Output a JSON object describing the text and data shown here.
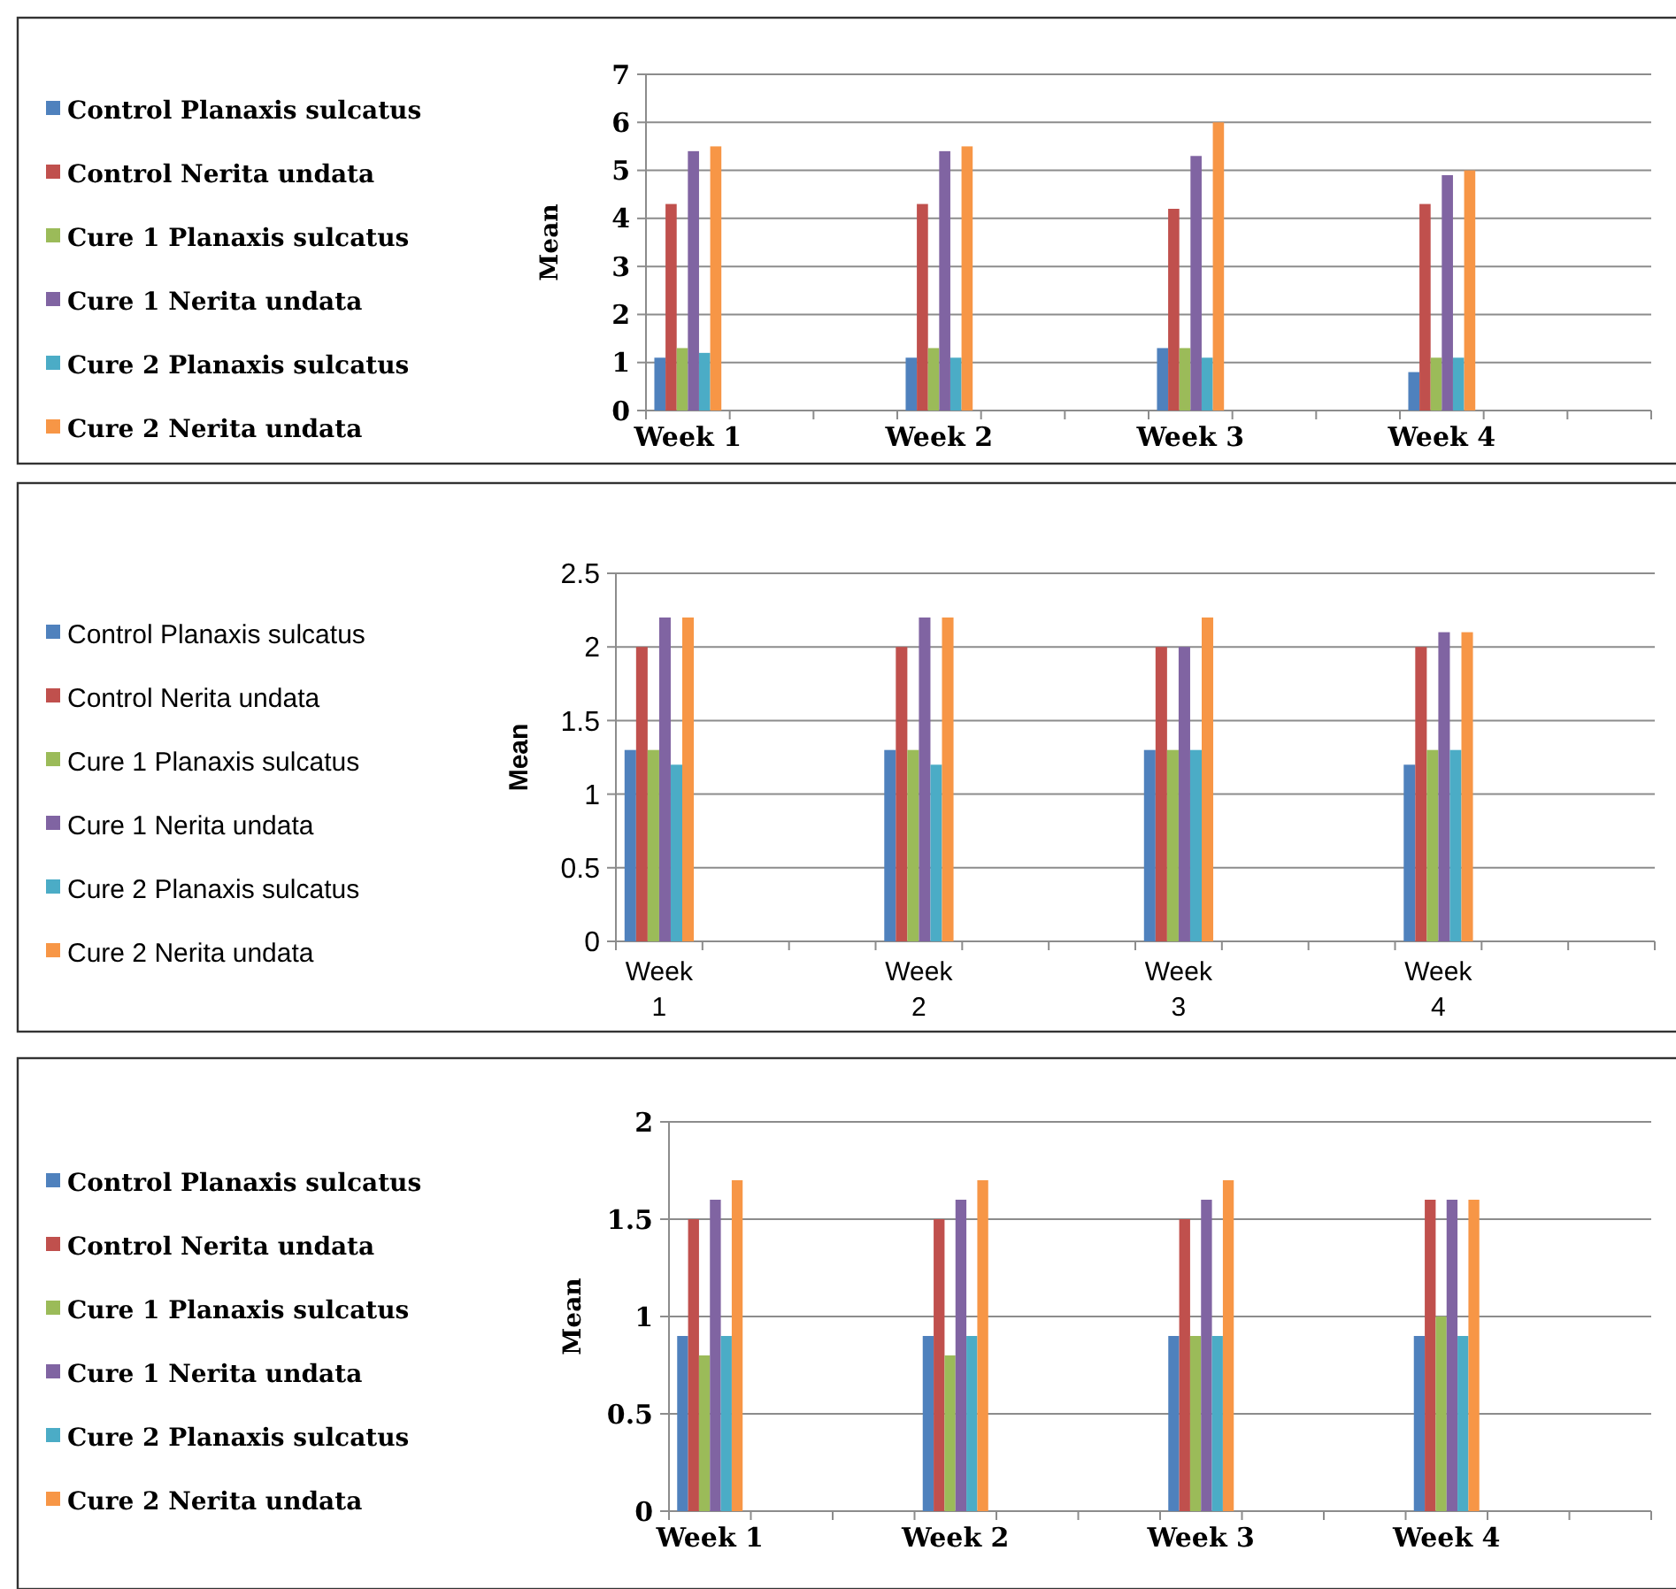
{
  "chart_data": [
    {
      "type": "bar",
      "ylabel": "Mean",
      "categories": [
        "Week 1",
        null,
        null,
        "Week 2",
        null,
        null,
        "Week 3",
        null,
        null,
        "Week 4",
        null,
        null
      ],
      "ylim": [
        0,
        7
      ],
      "yticks": [
        0,
        1,
        2,
        3,
        4,
        5,
        6,
        7
      ],
      "grid": "y",
      "legend": "left",
      "series": [
        {
          "name": "Control Planaxis sulcatus",
          "color": "#4f81bd",
          "values": [
            1.1,
            null,
            null,
            1.1,
            null,
            null,
            1.3,
            null,
            null,
            0.8,
            null,
            null
          ]
        },
        {
          "name": "Control Nerita undata",
          "color": "#c0504d",
          "values": [
            4.3,
            null,
            null,
            4.3,
            null,
            null,
            4.2,
            null,
            null,
            4.3,
            null,
            null
          ]
        },
        {
          "name": "Cure 1 Planaxis sulcatus",
          "color": "#9bbb59",
          "values": [
            1.3,
            null,
            null,
            1.3,
            null,
            null,
            1.3,
            null,
            null,
            1.1,
            null,
            null
          ]
        },
        {
          "name": "Cure 1 Nerita undata",
          "color": "#8064a2",
          "values": [
            5.4,
            null,
            null,
            5.4,
            null,
            null,
            5.3,
            null,
            null,
            4.9,
            null,
            null
          ]
        },
        {
          "name": "Cure 2 Planaxis sulcatus",
          "color": "#4bacc6",
          "values": [
            1.2,
            null,
            null,
            1.1,
            null,
            null,
            1.1,
            null,
            null,
            1.1,
            null,
            null
          ]
        },
        {
          "name": "Cure 2 Nerita undata",
          "color": "#f79646",
          "values": [
            5.5,
            null,
            null,
            5.5,
            null,
            null,
            6.0,
            null,
            null,
            5.0,
            null,
            null
          ]
        }
      ]
    },
    {
      "type": "bar",
      "ylabel": "Mean",
      "categories": [
        "Week 1",
        null,
        null,
        "Week 2",
        null,
        null,
        "Week 3",
        null,
        null,
        "Week 4",
        null,
        null
      ],
      "ylim": [
        0,
        2.5
      ],
      "yticks": [
        0,
        0.5,
        1,
        1.5,
        2,
        2.5
      ],
      "grid": "y",
      "legend": "left",
      "series": [
        {
          "name": "Control Planaxis sulcatus",
          "color": "#4f81bd",
          "values": [
            1.3,
            null,
            null,
            1.3,
            null,
            null,
            1.3,
            null,
            null,
            1.2,
            null,
            null
          ]
        },
        {
          "name": "Control Nerita undata",
          "color": "#c0504d",
          "values": [
            2.0,
            null,
            null,
            2.0,
            null,
            null,
            2.0,
            null,
            null,
            2.0,
            null,
            null
          ]
        },
        {
          "name": "Cure 1 Planaxis sulcatus",
          "color": "#9bbb59",
          "values": [
            1.3,
            null,
            null,
            1.3,
            null,
            null,
            1.3,
            null,
            null,
            1.3,
            null,
            null
          ]
        },
        {
          "name": "Cure 1 Nerita undata",
          "color": "#8064a2",
          "values": [
            2.2,
            null,
            null,
            2.2,
            null,
            null,
            2.0,
            null,
            null,
            2.1,
            null,
            null
          ]
        },
        {
          "name": "Cure 2 Planaxis sulcatus",
          "color": "#4bacc6",
          "values": [
            1.2,
            null,
            null,
            1.2,
            null,
            null,
            1.3,
            null,
            null,
            1.3,
            null,
            null
          ]
        },
        {
          "name": "Cure 2 Nerita undata",
          "color": "#f79646",
          "values": [
            2.2,
            null,
            null,
            2.2,
            null,
            null,
            2.2,
            null,
            null,
            2.1,
            null,
            null
          ]
        }
      ]
    },
    {
      "type": "bar",
      "ylabel": "Mean",
      "categories": [
        "Week 1",
        null,
        null,
        "Week 2",
        null,
        null,
        "Week 3",
        null,
        null,
        "Week 4",
        null,
        null
      ],
      "ylim": [
        0,
        2
      ],
      "yticks": [
        0,
        0.5,
        1,
        1.5,
        2
      ],
      "grid": "y",
      "legend": "left",
      "series": [
        {
          "name": "Control Planaxis sulcatus",
          "color": "#4f81bd",
          "values": [
            0.9,
            null,
            null,
            0.9,
            null,
            null,
            0.9,
            null,
            null,
            0.9,
            null,
            null
          ]
        },
        {
          "name": "Control Nerita undata",
          "color": "#c0504d",
          "values": [
            1.5,
            null,
            null,
            1.5,
            null,
            null,
            1.5,
            null,
            null,
            1.6,
            null,
            null
          ]
        },
        {
          "name": "Cure 1 Planaxis sulcatus",
          "color": "#9bbb59",
          "values": [
            0.8,
            null,
            null,
            0.8,
            null,
            null,
            0.9,
            null,
            null,
            1.0,
            null,
            null
          ]
        },
        {
          "name": "Cure 1 Nerita undata",
          "color": "#8064a2",
          "values": [
            1.6,
            null,
            null,
            1.6,
            null,
            null,
            1.6,
            null,
            null,
            1.6,
            null,
            null
          ]
        },
        {
          "name": "Cure 2 Planaxis sulcatus",
          "color": "#4bacc6",
          "values": [
            0.9,
            null,
            null,
            0.9,
            null,
            null,
            0.9,
            null,
            null,
            0.9,
            null,
            null
          ]
        },
        {
          "name": "Cure 2 Nerita undata",
          "color": "#f79646",
          "values": [
            1.7,
            null,
            null,
            1.7,
            null,
            null,
            1.7,
            null,
            null,
            1.6,
            null,
            null
          ]
        }
      ]
    }
  ]
}
